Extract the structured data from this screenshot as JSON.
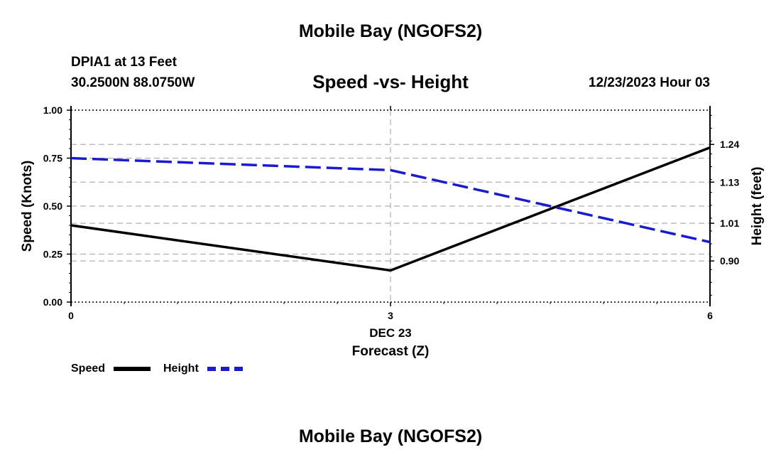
{
  "header": {
    "main_title": "Mobile Bay (NGOFS2)",
    "station": "DPIA1 at 13 Feet",
    "coordinates": "30.2500N  88.0750W",
    "chart_title": "Speed -vs- Height",
    "datetime": "12/23/2023 Hour 03"
  },
  "footer": {
    "title": "Mobile Bay (NGOFS2)"
  },
  "legend": {
    "speed_label": "Speed",
    "height_label": "Height"
  },
  "colors": {
    "speed": "#000000",
    "height": "#1a1ad0",
    "grid": "#b0b0b0"
  },
  "chart_data": {
    "type": "line",
    "title": "Speed -vs- Height",
    "xlabel": "Forecast (Z)",
    "x_sublabel": "DEC 23",
    "ylabel": "Speed (Knots)",
    "y2label": "Height (feet)",
    "x": [
      0,
      3,
      6
    ],
    "xlim": [
      0,
      6
    ],
    "x_ticks": [
      "0",
      "3",
      "6"
    ],
    "ylim": [
      0,
      1
    ],
    "y_ticks": [
      "0.00",
      "0.25",
      "0.50",
      "0.75",
      "1.00"
    ],
    "y2lim": [
      0.78,
      1.34
    ],
    "y2_ticks": [
      {
        "label": "0.90",
        "value": 0.9
      },
      {
        "label": "1.01",
        "value": 1.01
      },
      {
        "label": "1.13",
        "value": 1.13
      },
      {
        "label": "1.24",
        "value": 1.24
      }
    ],
    "series": [
      {
        "name": "Speed",
        "axis": "left",
        "style": "solid",
        "values": [
          0.4,
          0.165,
          0.805
        ]
      },
      {
        "name": "Height",
        "axis": "right",
        "style": "dashed",
        "values": [
          1.2,
          1.165,
          0.955
        ]
      }
    ]
  }
}
